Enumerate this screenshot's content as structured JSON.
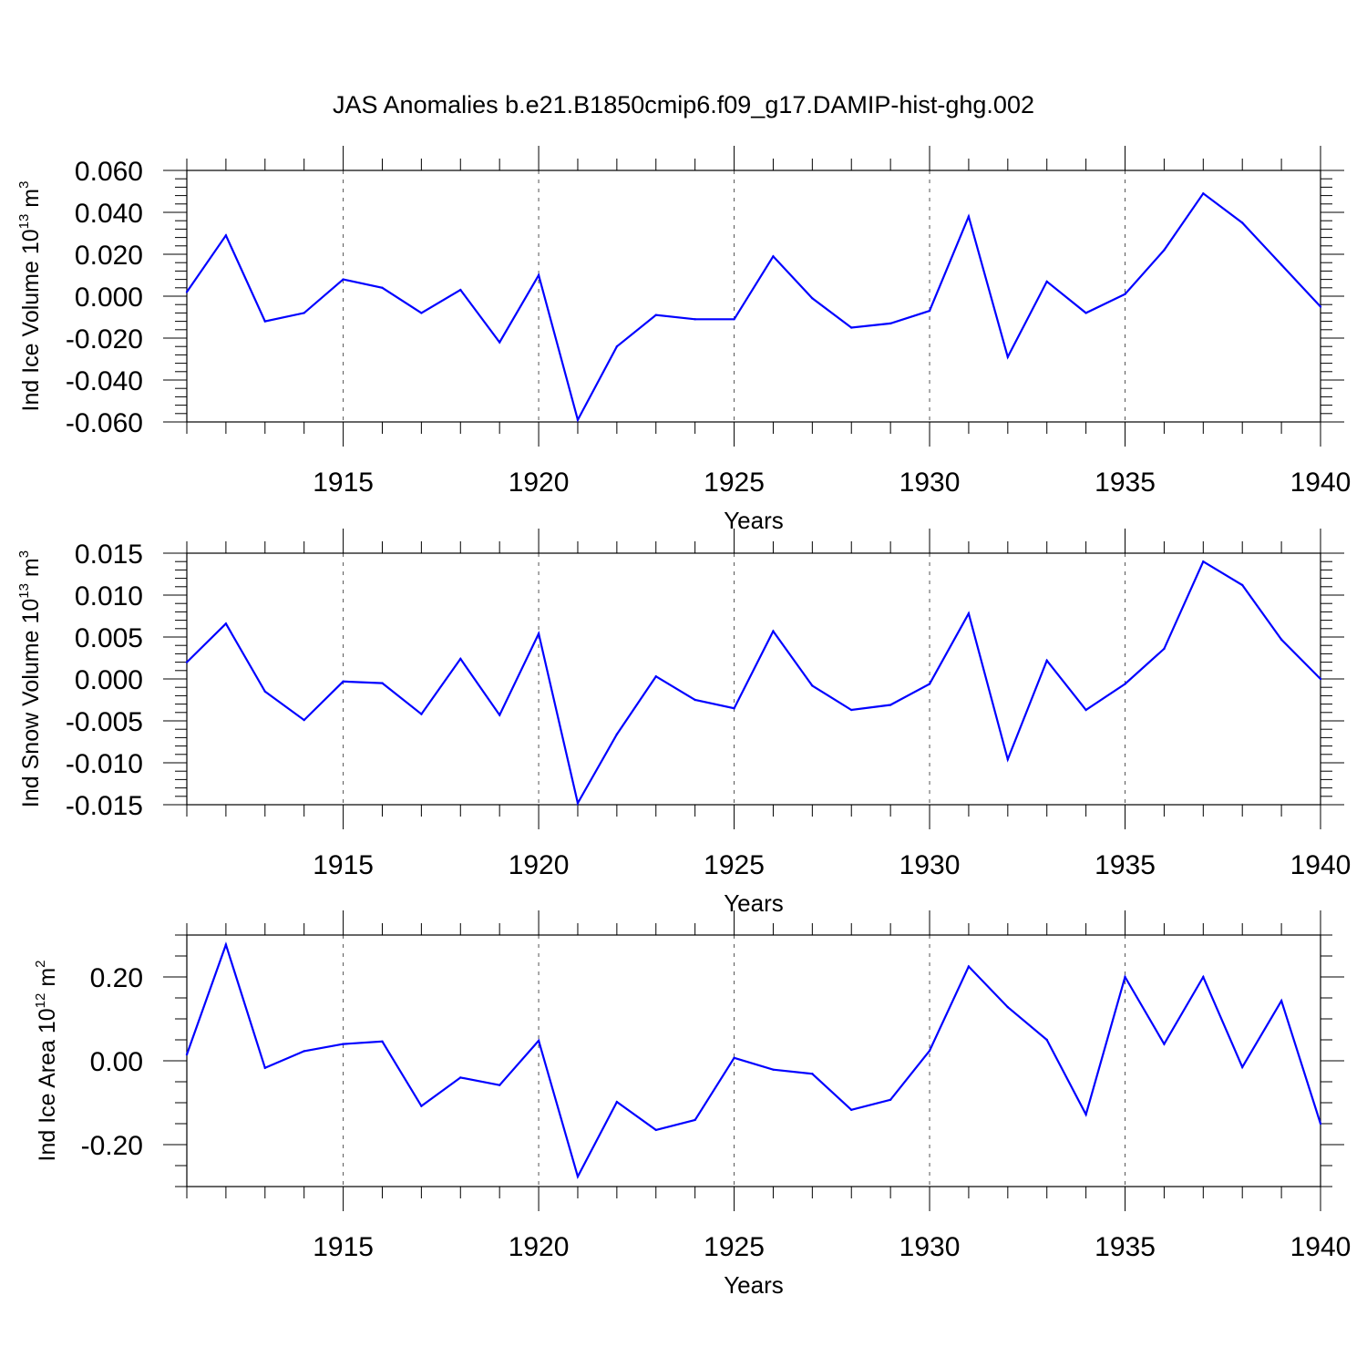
{
  "title": "JAS Anomalies b.e21.B1850cmip6.f09_g17.DAMIP-hist-ghg.002",
  "colors": {
    "line": "#0000ff",
    "axis": "#000000",
    "grid": "#555555"
  },
  "chart_data": [
    {
      "type": "line",
      "ylabel": {
        "main": "Ind Ice Volume 10",
        "exp": "13",
        "unit": " m",
        "unit_exp": "3"
      },
      "xlabel": "Years",
      "xlim": [
        1911,
        1940
      ],
      "ylim": [
        -0.06,
        0.06
      ],
      "yticks": [
        -0.06,
        -0.04,
        -0.02,
        0.0,
        0.02,
        0.04,
        0.06
      ],
      "ytick_labels": [
        "-0.060",
        "-0.040",
        "-0.020",
        "0.000",
        "0.020",
        "0.040",
        "0.060"
      ],
      "xticks": [
        1915,
        1920,
        1925,
        1930,
        1935,
        1940
      ],
      "xtick_labels": [
        "1915",
        "1920",
        "1925",
        "1930",
        "1935",
        "1940"
      ],
      "grid": "vertical dashed at major x ticks",
      "x": [
        1911,
        1912,
        1913,
        1914,
        1915,
        1916,
        1917,
        1918,
        1919,
        1920,
        1921,
        1922,
        1923,
        1924,
        1925,
        1926,
        1927,
        1928,
        1929,
        1930,
        1931,
        1932,
        1933,
        1934,
        1935,
        1936,
        1937,
        1938,
        1939,
        1940
      ],
      "values": [
        0.002,
        0.029,
        -0.012,
        -0.008,
        0.008,
        0.004,
        -0.008,
        0.003,
        -0.022,
        0.01,
        -0.059,
        -0.024,
        -0.009,
        -0.011,
        -0.011,
        0.019,
        -0.001,
        -0.015,
        -0.013,
        -0.007,
        0.038,
        -0.029,
        0.007,
        -0.008,
        0.001,
        0.022,
        0.049,
        0.035,
        0.015,
        -0.005
      ]
    },
    {
      "type": "line",
      "ylabel": {
        "main": "Ind Snow Volume 10",
        "exp": "13",
        "unit": " m",
        "unit_exp": "3"
      },
      "xlabel": "Years",
      "xlim": [
        1911,
        1940
      ],
      "ylim": [
        -0.015,
        0.015
      ],
      "yticks": [
        -0.015,
        -0.01,
        -0.005,
        0.0,
        0.005,
        0.01,
        0.015
      ],
      "ytick_labels": [
        "-0.015",
        "-0.010",
        "-0.005",
        "0.000",
        "0.005",
        "0.010",
        "0.015"
      ],
      "xticks": [
        1915,
        1920,
        1925,
        1930,
        1935,
        1940
      ],
      "xtick_labels": [
        "1915",
        "1920",
        "1925",
        "1930",
        "1935",
        "1940"
      ],
      "grid": "vertical dashed at major x ticks",
      "x": [
        1911,
        1912,
        1913,
        1914,
        1915,
        1916,
        1917,
        1918,
        1919,
        1920,
        1921,
        1922,
        1923,
        1924,
        1925,
        1926,
        1927,
        1928,
        1929,
        1930,
        1931,
        1932,
        1933,
        1934,
        1935,
        1936,
        1937,
        1938,
        1939,
        1940
      ],
      "values": [
        0.002,
        0.0066,
        -0.0015,
        -0.0049,
        -0.0003,
        -0.0005,
        -0.0042,
        0.0024,
        -0.0043,
        0.0054,
        -0.0148,
        -0.0066,
        0.0003,
        -0.0025,
        -0.0035,
        0.0057,
        -0.0008,
        -0.0037,
        -0.0031,
        -0.0006,
        0.0078,
        -0.0096,
        0.0022,
        -0.0037,
        -0.0006,
        0.0036,
        0.014,
        0.0112,
        0.0047,
        0.0
      ]
    },
    {
      "type": "line",
      "ylabel": {
        "main": "Ind Ice Area 10",
        "exp": "12",
        "unit": " m",
        "unit_exp": "2"
      },
      "xlabel": "Years",
      "xlim": [
        1911,
        1940
      ],
      "ylim": [
        -0.3,
        0.3
      ],
      "yticks": [
        -0.2,
        0.0,
        0.2
      ],
      "ytick_labels": [
        "-0.20",
        "0.00",
        "0.20"
      ],
      "yminor": [
        -0.3,
        -0.25,
        -0.15,
        -0.1,
        -0.05,
        0.05,
        0.1,
        0.15,
        0.25,
        0.3
      ],
      "xticks": [
        1915,
        1920,
        1925,
        1930,
        1935,
        1940
      ],
      "xtick_labels": [
        "1915",
        "1920",
        "1925",
        "1930",
        "1935",
        "1940"
      ],
      "grid": "vertical dashed at major x ticks",
      "x": [
        1911,
        1912,
        1913,
        1914,
        1915,
        1916,
        1917,
        1918,
        1919,
        1920,
        1921,
        1922,
        1923,
        1924,
        1925,
        1926,
        1927,
        1928,
        1929,
        1930,
        1931,
        1932,
        1933,
        1934,
        1935,
        1936,
        1937,
        1938,
        1939,
        1940
      ],
      "values": [
        0.015,
        0.277,
        -0.017,
        0.023,
        0.04,
        0.046,
        -0.108,
        -0.04,
        -0.058,
        0.048,
        -0.276,
        -0.098,
        -0.165,
        -0.141,
        0.007,
        -0.021,
        -0.031,
        -0.117,
        -0.093,
        0.024,
        0.225,
        0.128,
        0.05,
        -0.128,
        0.2,
        0.04,
        0.2,
        -0.015,
        0.143,
        -0.15
      ]
    }
  ]
}
